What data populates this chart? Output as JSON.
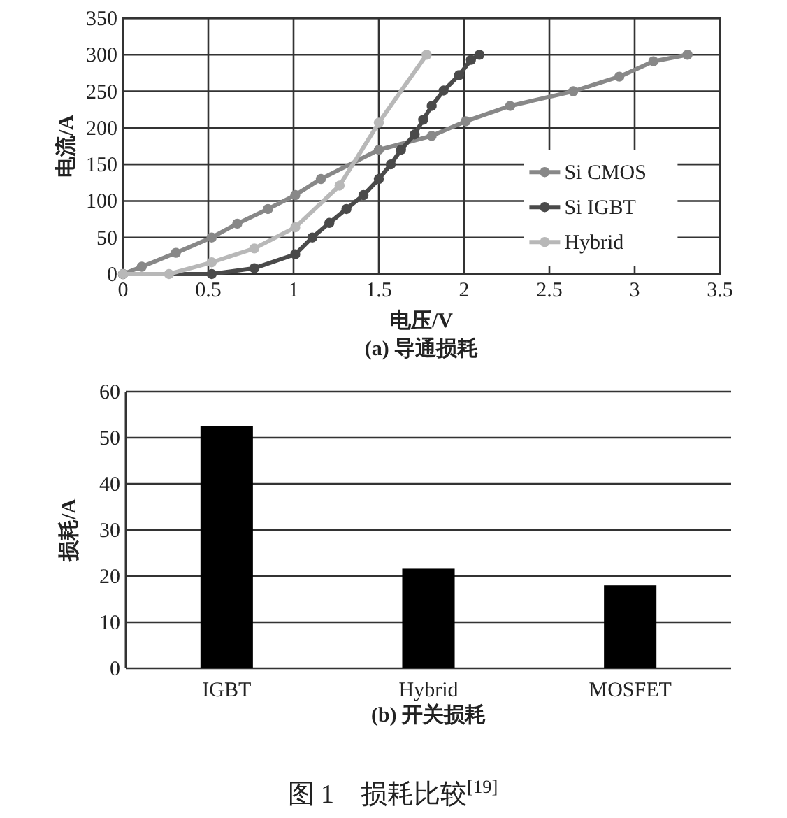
{
  "chart_data": [
    {
      "type": "line",
      "title": "(a) 导通损耗",
      "xlabel": "电压/V",
      "ylabel": "电流/A",
      "xlim": [
        0,
        3.5
      ],
      "ylim": [
        0,
        350
      ],
      "xticks": [
        0,
        0.5,
        1,
        1.5,
        2,
        2.5,
        3,
        3.5
      ],
      "yticks": [
        0,
        50,
        100,
        150,
        200,
        250,
        300,
        350
      ],
      "grid": true,
      "legend": "right",
      "marker": "circle",
      "series": [
        {
          "name": "Si CMOS",
          "color": "#888888",
          "x": [
            0,
            0.11,
            0.31,
            0.52,
            0.67,
            0.85,
            1.01,
            1.16,
            1.5,
            1.81,
            2.01,
            2.27,
            2.64,
            2.91,
            3.11,
            3.31
          ],
          "values": [
            0,
            10,
            29,
            50,
            69,
            89,
            108,
            130,
            170,
            189,
            209,
            230,
            250,
            270,
            291,
            300
          ]
        },
        {
          "name": "Si IGBT",
          "color": "#4a4a4a",
          "x": [
            0,
            0.52,
            0.77,
            1.01,
            1.11,
            1.21,
            1.31,
            1.41,
            1.5,
            1.57,
            1.63,
            1.71,
            1.76,
            1.81,
            1.88,
            1.97,
            2.04,
            2.09
          ],
          "values": [
            0,
            0,
            8,
            27,
            50,
            70,
            89,
            108,
            130,
            150,
            170,
            191,
            211,
            230,
            251,
            272,
            293,
            300
          ]
        },
        {
          "name": "Hybrid",
          "color": "#b8b8b8",
          "x": [
            0,
            0.27,
            0.52,
            0.77,
            1.01,
            1.27,
            1.5,
            1.78
          ],
          "values": [
            0,
            0,
            16,
            35,
            64,
            121,
            207,
            300
          ]
        }
      ]
    },
    {
      "type": "bar",
      "title": "(b) 开关损耗",
      "ylabel": "损耗/A",
      "categories": [
        "IGBT",
        "Hybrid",
        "MOSFET"
      ],
      "values": [
        52.5,
        21.6,
        18.0
      ],
      "color": "#000000",
      "ylim": [
        0,
        60
      ],
      "yticks": [
        0,
        10,
        20,
        30,
        40,
        50,
        60
      ],
      "grid": "y",
      "annotations": [
        "图 1　损耗比较$^{[19]}$"
      ]
    }
  ]
}
